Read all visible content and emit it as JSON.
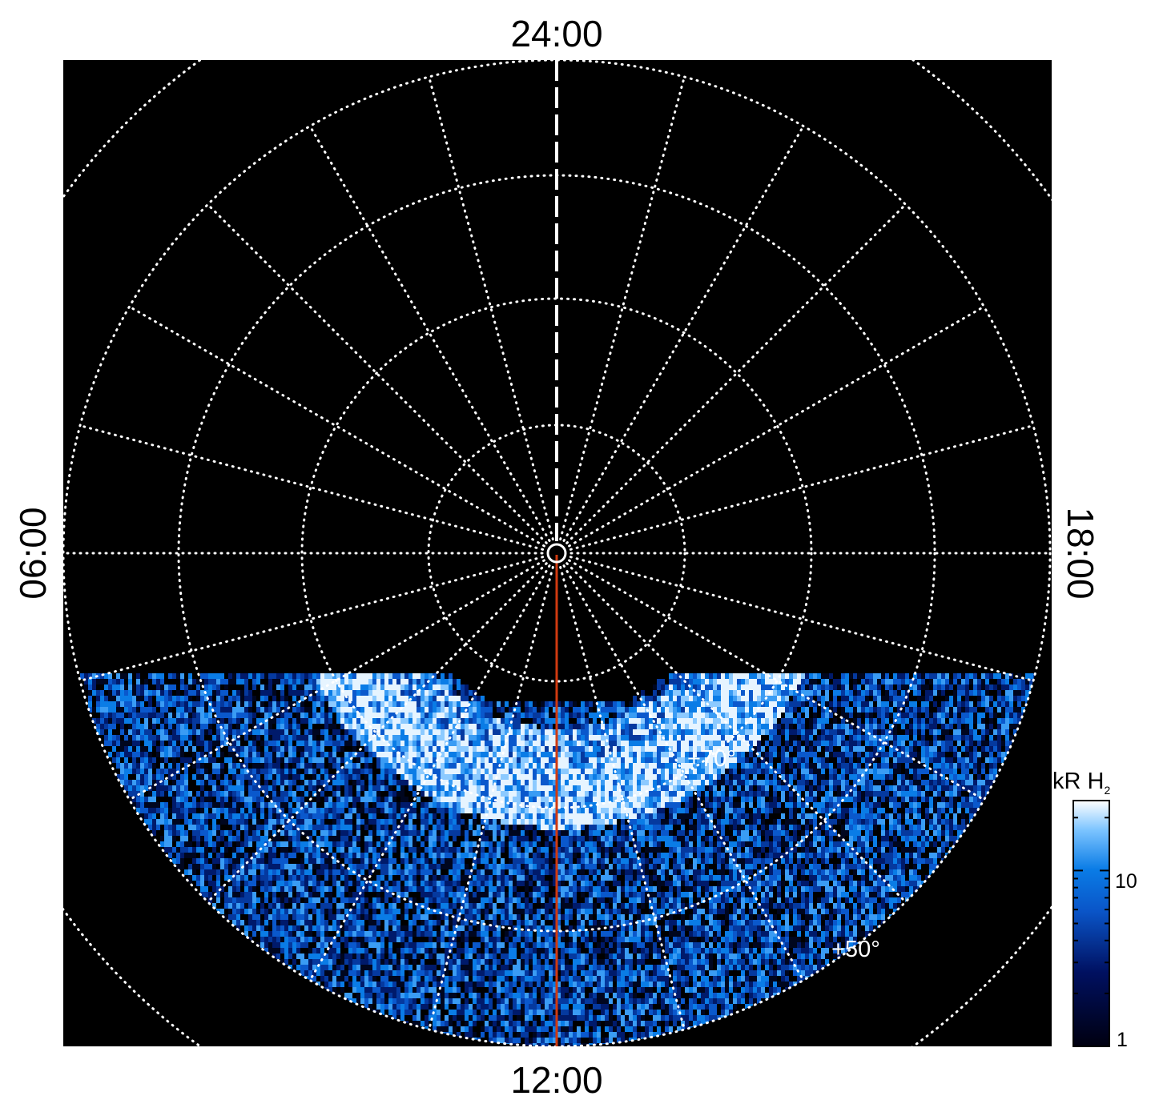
{
  "chart_data": {
    "type": "heatmap",
    "projection": "polar",
    "colormap": "black-blue-white",
    "colors": {
      "background": "#000000",
      "grid": "#ffffff",
      "meridian_line": "#d03a10",
      "cmap_low": "#000010",
      "cmap_mid": "#0a7ce6",
      "cmap_high": "#ffffff"
    },
    "local_time_labels": {
      "top": "24:00",
      "bottom": "12:00",
      "left": "06:00",
      "right": "18:00"
    },
    "latitude_labels": [
      {
        "text": "+70°",
        "latitude": 70
      },
      {
        "text": "+50°",
        "latitude": 50
      }
    ],
    "latitude_circles_deg": [
      80,
      70,
      60,
      50,
      40
    ],
    "meridian_spacing_hours": 1,
    "highlighted_meridian_hours": 12,
    "coverage": "dayside half only",
    "colorbar": {
      "title": "kR H",
      "title_subscript": "2",
      "scale": "log",
      "range": [
        1,
        25
      ],
      "tick_labels": [
        "10",
        "1"
      ],
      "tick_values": [
        10,
        1
      ]
    }
  }
}
